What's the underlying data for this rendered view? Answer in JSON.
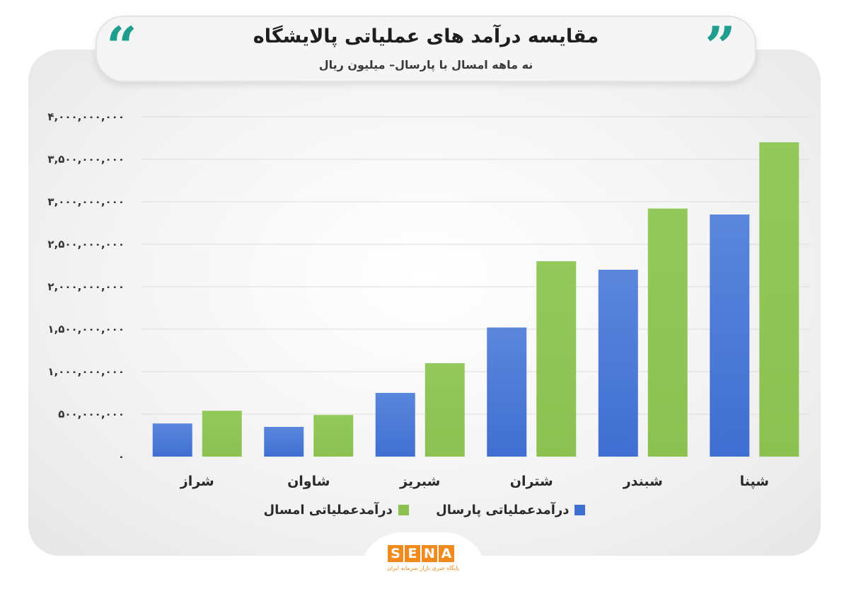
{
  "header": {
    "title": "مقایسه درآمد های عملیاتی پالایشگاه",
    "subtitle": "نه ماهه امسال با پارسال– میلیون ریال",
    "quote_left": "“",
    "quote_right": "”"
  },
  "colors": {
    "last_year": "#3f6fd1",
    "this_year": "#8cc152",
    "accent": "#1f9d8f",
    "brand": "#f08a1c"
  },
  "chart_data": {
    "type": "bar",
    "categories": [
      "شپنا",
      "شبندر",
      "شتران",
      "شبریز",
      "شاوان",
      "شراز"
    ],
    "series": [
      {
        "name": "درآمدعملیاتی پارسال",
        "values": [
          2850000000,
          2200000000,
          1520000000,
          750000000,
          350000000,
          390000000
        ]
      },
      {
        "name": "درآمدعملیاتی امسال",
        "values": [
          3700000000,
          2920000000,
          2300000000,
          1100000000,
          490000000,
          540000000
        ]
      }
    ],
    "ylim": [
      0,
      4000000000
    ],
    "yticks": [
      {
        "value": 0,
        "label": "۰"
      },
      {
        "value": 500000000,
        "label": "۵۰۰,۰۰۰,۰۰۰"
      },
      {
        "value": 1000000000,
        "label": "۱,۰۰۰,۰۰۰,۰۰۰"
      },
      {
        "value": 1500000000,
        "label": "۱,۵۰۰,۰۰۰,۰۰۰"
      },
      {
        "value": 2000000000,
        "label": "۲,۰۰۰,۰۰۰,۰۰۰"
      },
      {
        "value": 2500000000,
        "label": "۲,۵۰۰,۰۰۰,۰۰۰"
      },
      {
        "value": 3000000000,
        "label": "۳,۰۰۰,۰۰۰,۰۰۰"
      },
      {
        "value": 3500000000,
        "label": "۳,۵۰۰,۰۰۰,۰۰۰"
      },
      {
        "value": 4000000000,
        "label": "۴,۰۰۰,۰۰۰,۰۰۰"
      }
    ],
    "xlabel": "",
    "ylabel": "",
    "grid": true,
    "legend_position": "bottom"
  },
  "legend": {
    "last_year": "درآمدعملیاتی پارسال",
    "this_year": "درآمدعملیاتی امسال"
  },
  "logo": {
    "letters": [
      "S",
      "E",
      "N",
      "A"
    ],
    "tagline": "پایگاه خبری بازار سرمایه ایران"
  }
}
